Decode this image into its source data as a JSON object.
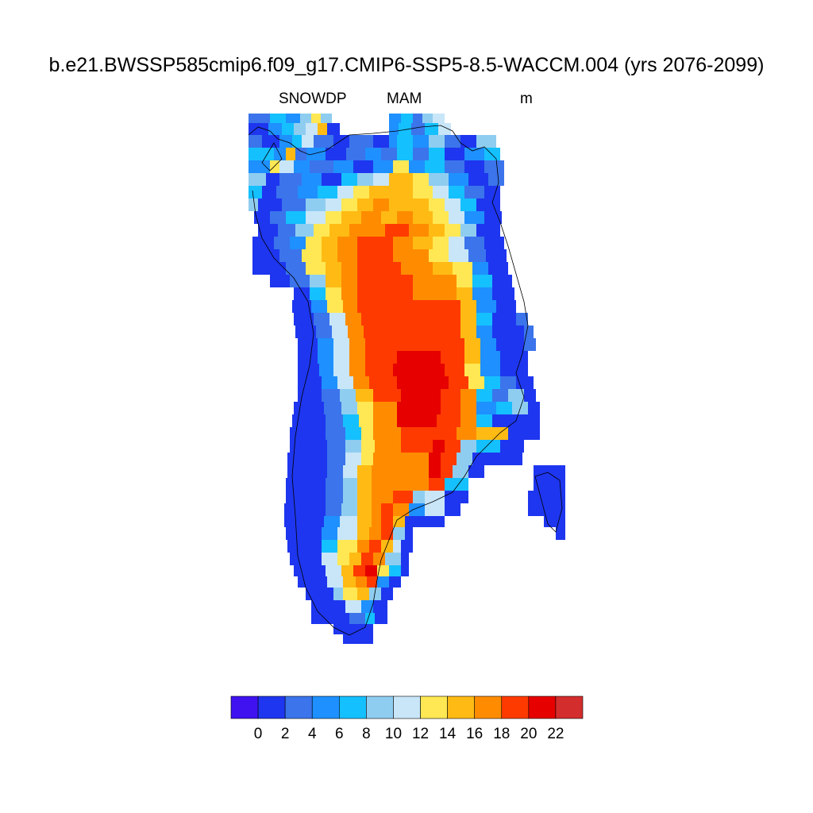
{
  "title": "b.e21.BWSSP585cmip6.f09_g17.CMIP6-SSP5-8.5-WACCM.004 (yrs 2076-2099)",
  "subtitle_left": "SNOWDP",
  "subtitle_center": "MAM",
  "subtitle_right": "m",
  "colorbar": {
    "colors": [
      "#4012f0",
      "#1e36ef",
      "#3b74eb",
      "#1e90ff",
      "#15c0ff",
      "#8fcdf0",
      "#c8e6f8",
      "#ffe853",
      "#ffbb14",
      "#ff8c00",
      "#ff3a00",
      "#e60000",
      "#d42d2d"
    ],
    "tick_labels": [
      "0",
      "2",
      "4",
      "6",
      "8",
      "10",
      "12",
      "14",
      "16",
      "18",
      "20",
      "22"
    ]
  },
  "chart_data": {
    "type": "heatmap",
    "variable": "SNOWDP",
    "season": "MAM",
    "units": "m",
    "levels": [
      0,
      2,
      4,
      6,
      8,
      10,
      12,
      14,
      16,
      18,
      20,
      22
    ],
    "region_note_values": {
      "interior_max_class": "20-22",
      "margin_class": "0-2"
    }
  }
}
